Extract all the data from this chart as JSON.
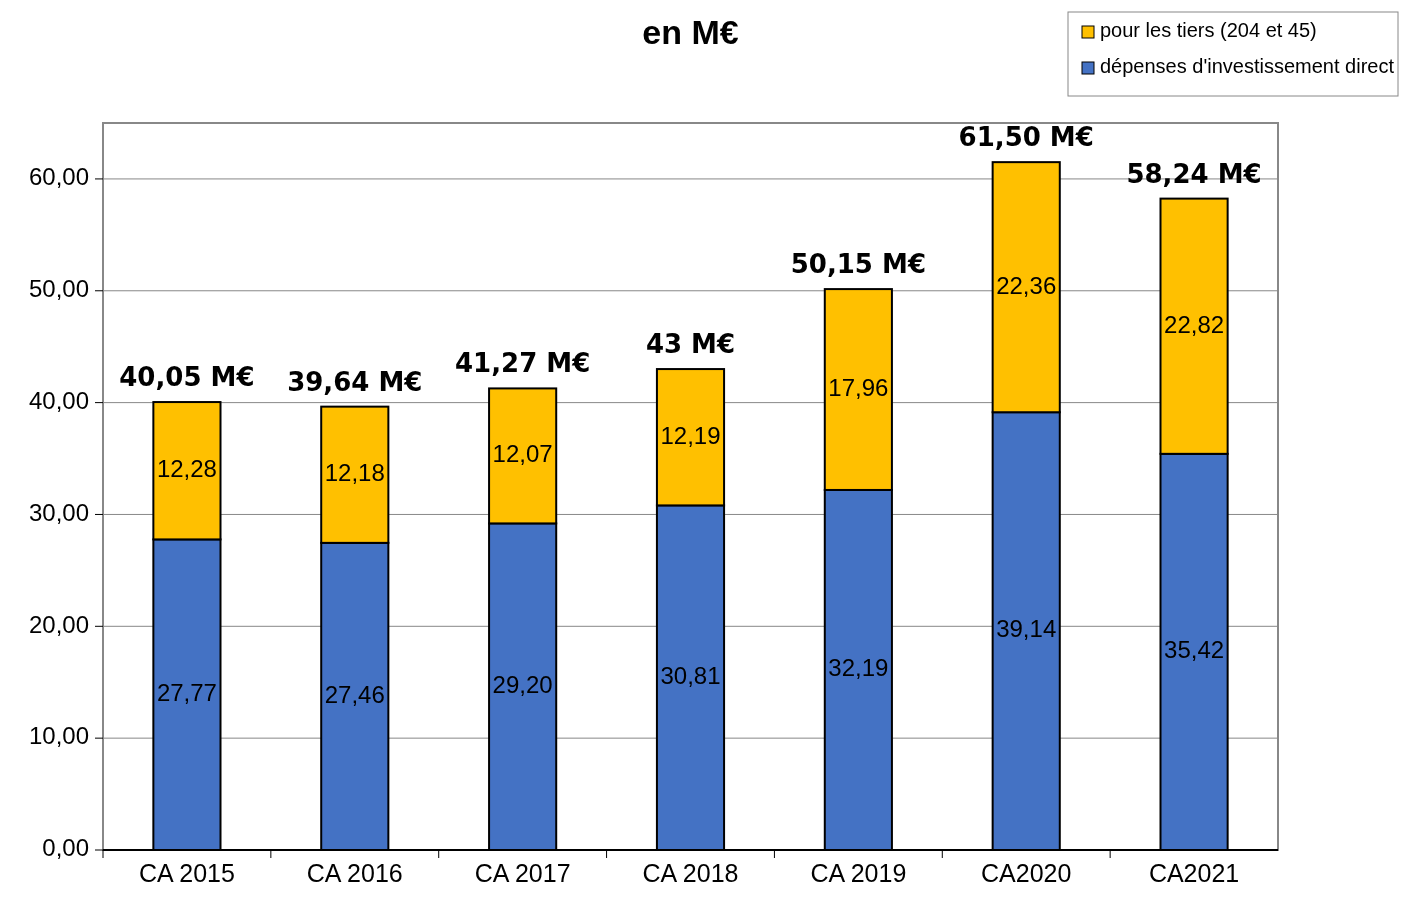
{
  "chart_data": {
    "type": "bar",
    "title": "en M€",
    "categories": [
      "CA 2015",
      "CA 2016",
      "CA 2017",
      "CA 2018",
      "CA 2019",
      "CA2020",
      "CA2021"
    ],
    "stacked": true,
    "series": [
      {
        "name": "dépenses d'investissement direct",
        "color": "#4472c4",
        "values": [
          27.77,
          27.46,
          29.2,
          30.81,
          32.19,
          39.14,
          35.42
        ],
        "value_labels": [
          "27,77",
          "27,46",
          "29,20",
          "30,81",
          "32,19",
          "39,14",
          "35,42"
        ]
      },
      {
        "name": "pour les tiers (204 et 45)",
        "color": "#ffc000",
        "values": [
          12.28,
          12.18,
          12.07,
          12.19,
          17.96,
          22.36,
          22.82
        ],
        "value_labels": [
          "12,28",
          "12,18",
          "12,07",
          "12,19",
          "17,96",
          "22,36",
          "22,82"
        ]
      }
    ],
    "totals": [
      "40,05 M€",
      "39,64 M€",
      "41,27 M€",
      "43 M€",
      "50,15 M€",
      "61,50 M€",
      "58,24 M€"
    ],
    "ylim": [
      0,
      65
    ],
    "yticks": [
      {
        "value": 0,
        "label": "0,00"
      },
      {
        "value": 10,
        "label": "10,00"
      },
      {
        "value": 20,
        "label": "20,00"
      },
      {
        "value": 30,
        "label": "30,00"
      },
      {
        "value": 40,
        "label": "40,00"
      },
      {
        "value": 50,
        "label": "50,00"
      },
      {
        "value": 60,
        "label": "60,00"
      }
    ],
    "grid": "y",
    "legend": "top right"
  }
}
